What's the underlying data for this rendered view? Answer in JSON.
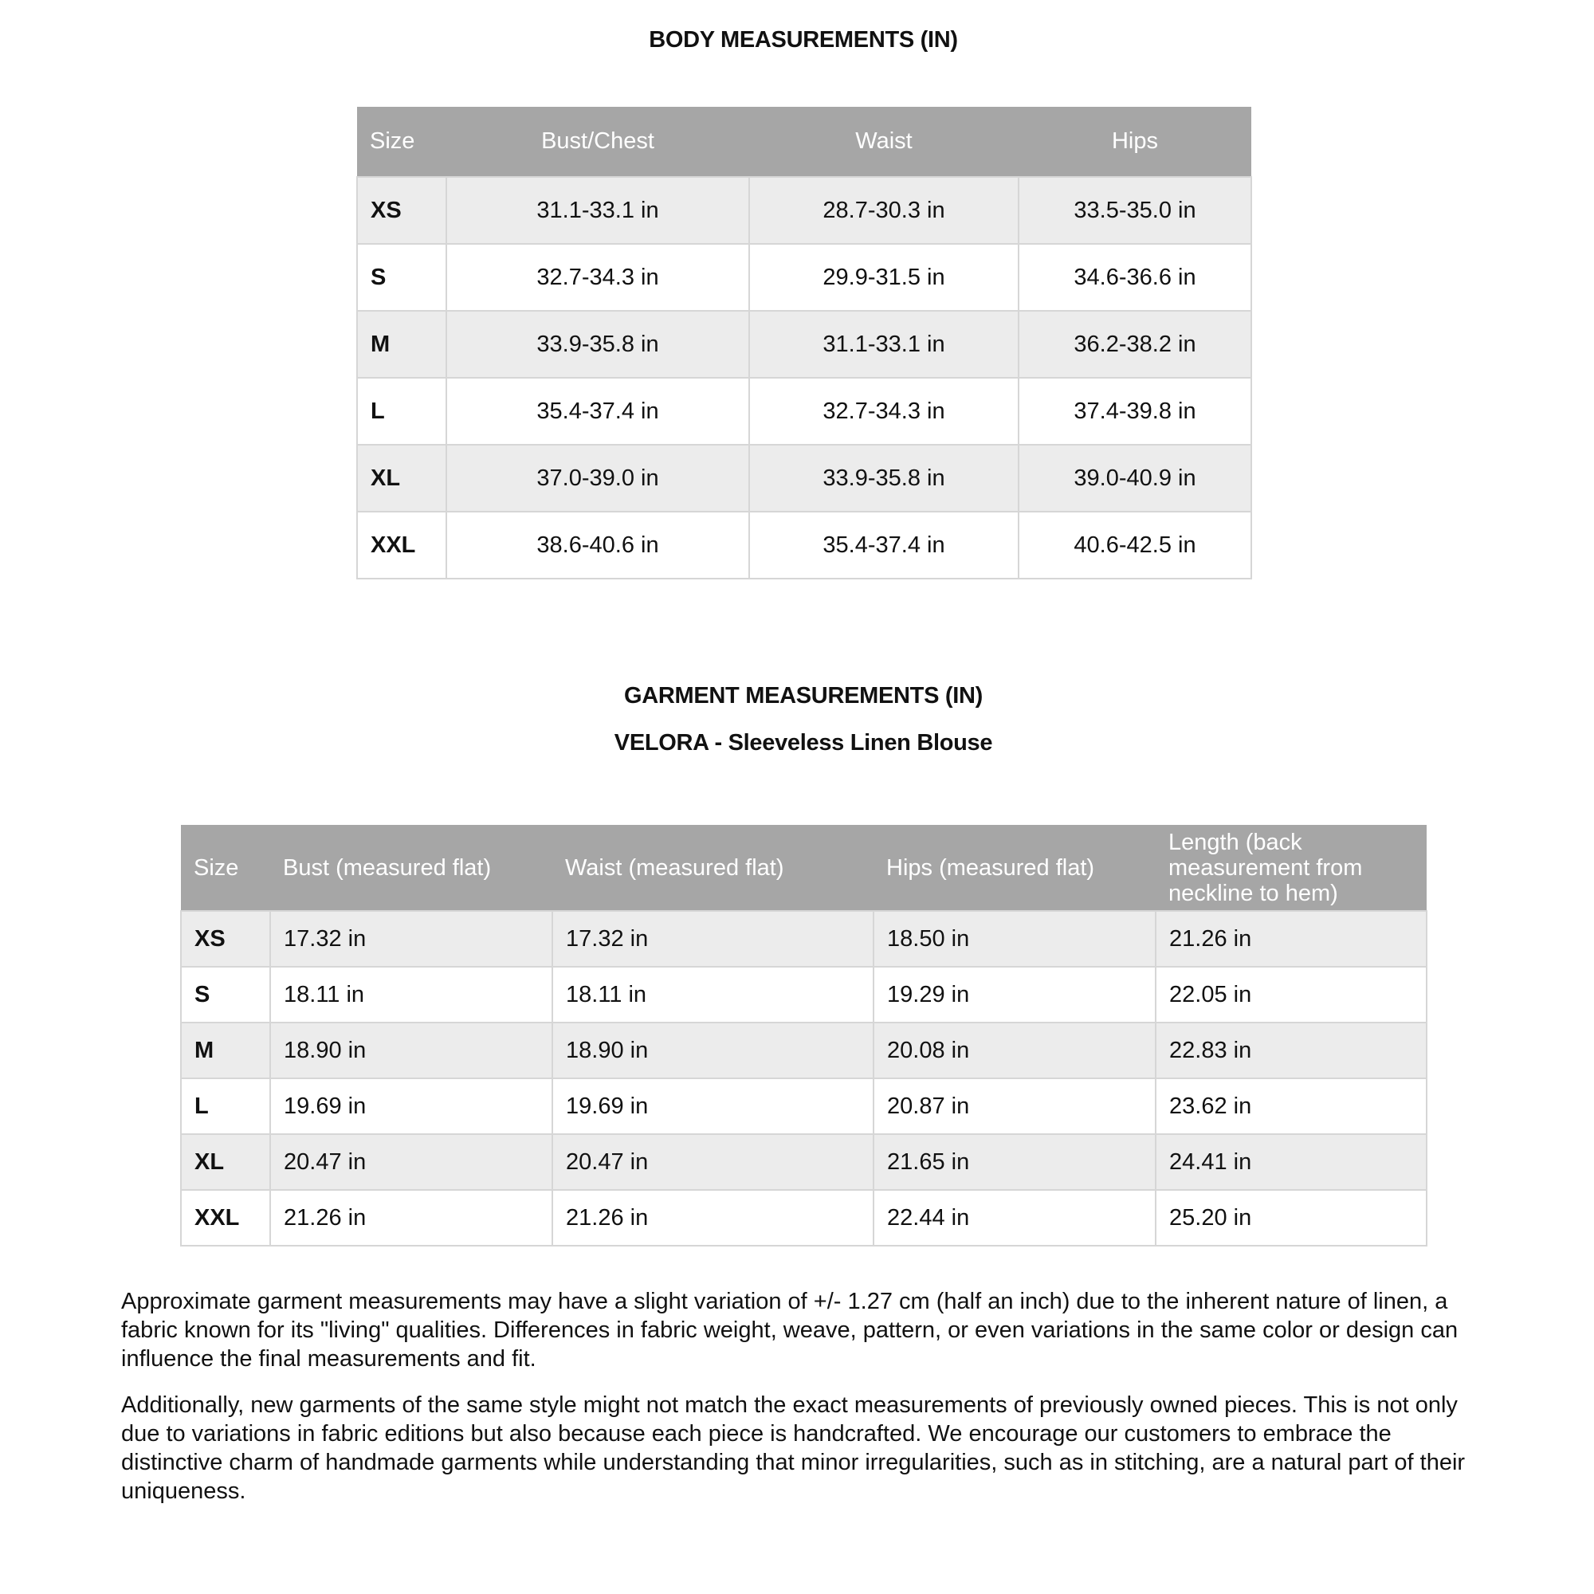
{
  "body": {
    "title": "BODY MEASUREMENTS (IN)",
    "headers": [
      "Size",
      "Bust/Chest",
      "Waist",
      "Hips"
    ],
    "rows": [
      [
        "XS",
        "31.1-33.1 in",
        "28.7-30.3 in",
        "33.5-35.0 in"
      ],
      [
        "S",
        "32.7-34.3 in",
        "29.9-31.5 in",
        "34.6-36.6 in"
      ],
      [
        "M",
        "33.9-35.8 in",
        "31.1-33.1 in",
        "36.2-38.2 in"
      ],
      [
        "L",
        "35.4-37.4 in",
        "32.7-34.3 in",
        "37.4-39.8 in"
      ],
      [
        "XL",
        "37.0-39.0 in",
        "33.9-35.8 in",
        "39.0-40.9 in"
      ],
      [
        "XXL",
        "38.6-40.6 in",
        "35.4-37.4 in",
        "40.6-42.5 in"
      ]
    ]
  },
  "garment": {
    "title": "GARMENT MEASUREMENTS (IN)",
    "subtitle": "VELORA - Sleeveless Linen Blouse",
    "headers": [
      "Size",
      "Bust (measured flat)",
      "Waist (measured flat)",
      "Hips (measured flat)",
      "Length (back measurement from neckline to hem)"
    ],
    "rows": [
      [
        "XS",
        "17.32 in",
        "17.32 in",
        "18.50 in",
        "21.26 in"
      ],
      [
        "S",
        "18.11 in",
        "18.11 in",
        "19.29 in",
        "22.05 in"
      ],
      [
        "M",
        "18.90 in",
        "18.90 in",
        "20.08 in",
        "22.83 in"
      ],
      [
        "L",
        "19.69 in",
        "19.69 in",
        "20.87 in",
        "23.62 in"
      ],
      [
        "XL",
        "20.47 in",
        "20.47 in",
        "21.65 in",
        "24.41 in"
      ],
      [
        "XXL",
        "21.26 in",
        "21.26 in",
        "22.44 in",
        "25.20 in"
      ]
    ]
  },
  "notes": [
    "Approximate garment measurements may have a slight variation of +/- 1.27 cm (half an inch) due to the inherent nature of linen, a fabric known for its \"living\" qualities. Differences in fabric weight, weave, pattern, or even variations in the same color or design can influence the final measurements and fit.",
    "Additionally, new garments of the same style might not match the exact measurements of previously owned pieces. This is not only due to variations in fabric editions but also because each piece is handcrafted. We encourage our customers to embrace the distinctive charm of handmade garments while understanding that minor irregularities, such as in stitching, are a natural part of their uniqueness."
  ],
  "colors": {
    "header_bg": "#a6a6a6",
    "row_alt": "#ececec",
    "border": "#d6d6d6"
  }
}
